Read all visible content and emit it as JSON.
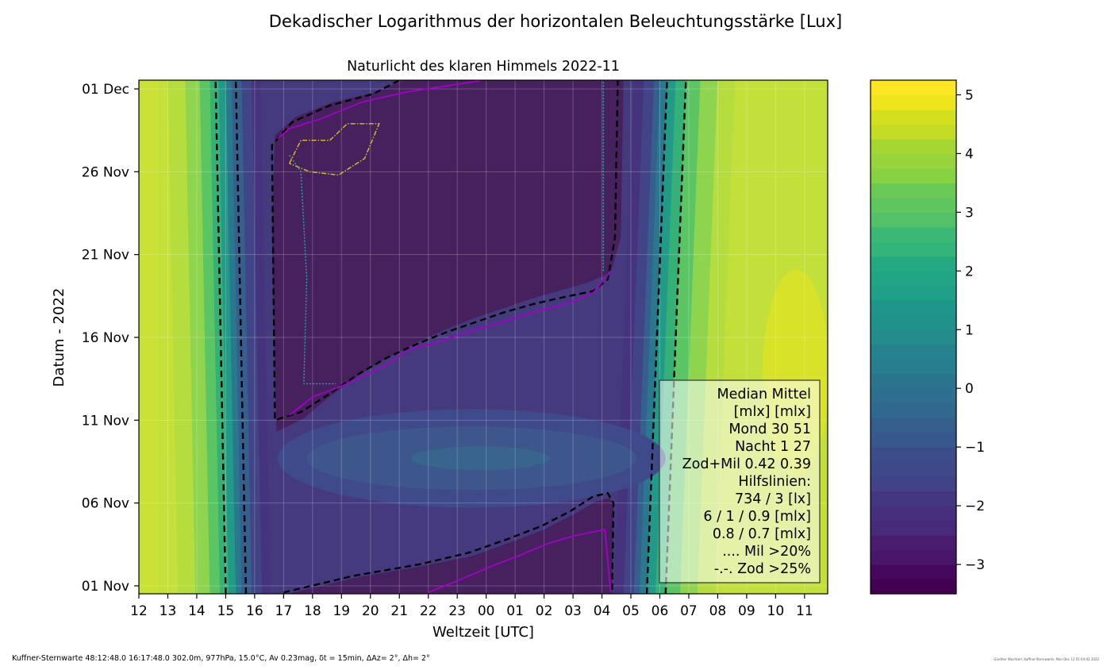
{
  "chart_data": {
    "type": "heatmap",
    "title": "Dekadischer Logarithmus der horizontalen Beleuchtungsstärke [Lux]",
    "subtitle": "Naturlicht des klaren Himmels 2022-11",
    "xlabel": "Weltzeit [UTC]",
    "ylabel": "Datum - 2022",
    "x_ticks": [
      "12",
      "13",
      "14",
      "15",
      "16",
      "17",
      "18",
      "19",
      "20",
      "21",
      "22",
      "23",
      "00",
      "01",
      "02",
      "03",
      "04",
      "05",
      "06",
      "07",
      "08",
      "09",
      "10",
      "11"
    ],
    "y_ticks": [
      "01 Dec",
      "26 Nov",
      "21 Nov",
      "16 Nov",
      "11 Nov",
      "06 Nov",
      "01 Nov"
    ],
    "colorbar": {
      "range": [
        -3.5,
        5.25
      ],
      "ticks": [
        "5",
        "4",
        "3",
        "2",
        "1",
        "0",
        "−1",
        "−2",
        "−3"
      ],
      "tick_values": [
        5,
        4,
        3,
        2,
        1,
        0,
        -1,
        -2,
        -3
      ]
    },
    "sunset_line_utc": {
      "start": 15.55,
      "end": 15.2
    },
    "sunrise_line_utc": {
      "start": 5.7,
      "end": 6.4
    },
    "legend": [
      "Median Mittel",
      "[mlx]  [mlx]",
      "Mond   30  51",
      "Nacht   1  27",
      "Zod+Mil 0.42  0.39",
      "Hilfslinien:",
      "734 / 3  [lx]",
      "6 /  1 / 0.9 [mlx]",
      "0.8 / 0.7 [mlx]",
      ".... Mil >20%",
      "-.-. Zod >25%"
    ],
    "grid": true
  },
  "footer": "Kuffner-Sternwarte 48:12:48.0 16:17:48.0 302.0m,  977hPa, 15.0°C, Av 0.23mag, δt = 15min, ΔAz=  2°, Δh= 2°",
  "credit": "Günther Wuchterl, Kuffner-Sternwarte, Mon Dec 12 01:04:02 2022",
  "colors": {
    "night": "#46215e",
    "moonlit": "#453a7e",
    "twilight": "#26858c",
    "day": "#c3e03a",
    "bright": "#e2e419",
    "contour": "#000000",
    "milky_way": "#22a8b0",
    "zodiacal": "#d6c51e",
    "moon_edge": "#a300c8"
  }
}
